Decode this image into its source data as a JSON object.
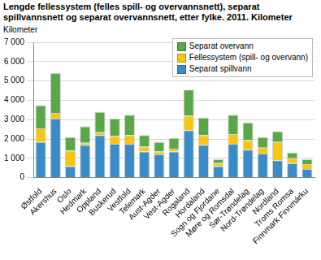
{
  "chart_data": {
    "type": "bar",
    "title": "Lengde fellessystem (felles spill- og overvannsnett), separat spillvannsnett og separat overvannsnett, etter fylke. 2011. Kilometer",
    "y_label": "Kilometer",
    "categories": [
      "Østfold",
      "Akershus",
      "Oslo",
      "Hedmark",
      "Oppland",
      "Buskerud",
      "Vestfold",
      "Telemark",
      "Aust-Agder",
      "Vest-Agder",
      "Rogaland",
      "Hordaland",
      "Sogn og Fjordane",
      "Møre og Romsdal",
      "Sør-Trøndelag",
      "Nord-Trøndelag",
      "Nordland",
      "Troms Romsa",
      "Finnmark Finnmárku"
    ],
    "series": [
      {
        "name": "Separat spillvann",
        "color": "#3a8cc8",
        "values": [
          1850,
          3050,
          600,
          1700,
          2200,
          1750,
          1750,
          1350,
          1200,
          1350,
          2450,
          1700,
          600,
          1750,
          1450,
          1250,
          900,
          750,
          450
        ]
      },
      {
        "name": "Fellessystem (spill- og overvann)",
        "color": "#f9c513",
        "values": [
          700,
          300,
          800,
          100,
          150,
          400,
          450,
          250,
          150,
          150,
          750,
          500,
          150,
          500,
          500,
          300,
          950,
          250,
          250
        ]
      },
      {
        "name": "Separat overvann",
        "color": "#5aa747",
        "values": [
          1200,
          2050,
          700,
          850,
          1050,
          900,
          1050,
          600,
          500,
          550,
          1350,
          900,
          200,
          1000,
          900,
          550,
          550,
          300,
          250
        ]
      }
    ],
    "stacked": true,
    "ylim": [
      0,
      7000
    ],
    "yticks": [
      0,
      {
        "value": 1000,
        "label": "1 000"
      },
      {
        "value": 2000,
        "label": "2 000"
      },
      {
        "value": 3000,
        "label": "3 000"
      },
      {
        "value": 4000,
        "label": "4 000"
      },
      {
        "value": 5000,
        "label": "5 000"
      },
      {
        "value": 6000,
        "label": "6 000"
      },
      {
        "value": 7000,
        "label": "7 000"
      }
    ],
    "grid": true,
    "legend": "top-right"
  }
}
